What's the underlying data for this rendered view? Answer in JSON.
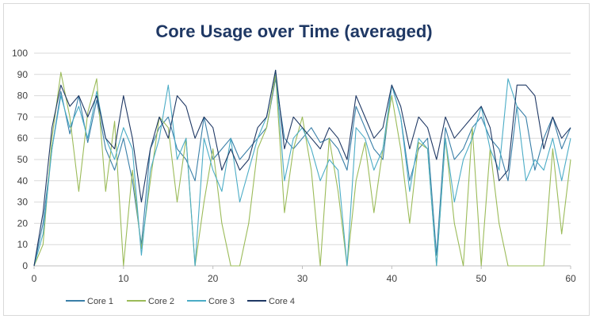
{
  "chart_data": {
    "type": "line",
    "title": "Core Usage over Time (averaged)",
    "xlabel": "",
    "ylabel": "",
    "xlim": [
      0,
      60
    ],
    "ylim": [
      0,
      100
    ],
    "x_ticks": [
      0,
      10,
      20,
      30,
      40,
      50,
      60
    ],
    "y_ticks": [
      0,
      10,
      20,
      30,
      40,
      50,
      60,
      70,
      80,
      90,
      100
    ],
    "grid": "horizontal",
    "legend_position": "bottom-left",
    "x": [
      0,
      1,
      2,
      3,
      4,
      5,
      6,
      7,
      8,
      9,
      10,
      11,
      12,
      13,
      14,
      15,
      16,
      17,
      18,
      19,
      20,
      21,
      22,
      23,
      24,
      25,
      26,
      27,
      28,
      29,
      30,
      31,
      32,
      33,
      34,
      35,
      36,
      37,
      38,
      39,
      40,
      41,
      42,
      43,
      44,
      45,
      46,
      47,
      48,
      49,
      50,
      51,
      52,
      53,
      54,
      55,
      56,
      57,
      58,
      59,
      60
    ],
    "series": [
      {
        "name": "Core 1",
        "color": "#3a7fa8",
        "values": [
          0,
          20,
          55,
          82,
          62,
          80,
          58,
          78,
          55,
          45,
          60,
          40,
          10,
          55,
          65,
          70,
          55,
          50,
          40,
          70,
          50,
          55,
          60,
          50,
          55,
          60,
          65,
          88,
          60,
          55,
          60,
          65,
          58,
          60,
          55,
          45,
          75,
          65,
          55,
          50,
          85,
          70,
          40,
          55,
          60,
          5,
          65,
          50,
          55,
          65,
          70,
          60,
          55,
          40,
          75,
          70,
          45,
          60,
          70,
          55,
          65
        ]
      },
      {
        "name": "Core 2",
        "color": "#9bbb59",
        "values": [
          0,
          10,
          60,
          91,
          70,
          35,
          72,
          88,
          35,
          68,
          0,
          45,
          8,
          40,
          70,
          65,
          30,
          60,
          0,
          30,
          55,
          20,
          0,
          0,
          20,
          55,
          65,
          90,
          25,
          55,
          70,
          45,
          0,
          60,
          35,
          0,
          40,
          58,
          25,
          55,
          80,
          55,
          20,
          58,
          55,
          0,
          60,
          20,
          0,
          65,
          0,
          55,
          20,
          0,
          0,
          0,
          0,
          0,
          55,
          15,
          50
        ]
      },
      {
        "name": "Core 3",
        "color": "#4bacc6",
        "values": [
          0,
          15,
          55,
          80,
          65,
          75,
          60,
          82,
          60,
          50,
          65,
          55,
          5,
          45,
          60,
          85,
          50,
          60,
          0,
          60,
          45,
          35,
          60,
          30,
          45,
          60,
          70,
          92,
          40,
          60,
          65,
          55,
          40,
          50,
          45,
          0,
          65,
          60,
          45,
          55,
          85,
          70,
          35,
          60,
          55,
          0,
          60,
          30,
          50,
          60,
          75,
          55,
          45,
          88,
          75,
          40,
          50,
          45,
          60,
          40,
          60
        ]
      },
      {
        "name": "Core 4",
        "color": "#1f3864",
        "values": [
          0,
          25,
          65,
          85,
          75,
          80,
          70,
          80,
          60,
          55,
          80,
          60,
          30,
          55,
          70,
          60,
          80,
          75,
          60,
          70,
          65,
          45,
          55,
          45,
          50,
          65,
          70,
          92,
          55,
          70,
          65,
          60,
          55,
          65,
          60,
          50,
          80,
          70,
          60,
          65,
          85,
          75,
          55,
          70,
          65,
          50,
          70,
          60,
          65,
          70,
          75,
          65,
          40,
          45,
          85,
          85,
          80,
          55,
          70,
          60,
          65
        ]
      }
    ]
  }
}
